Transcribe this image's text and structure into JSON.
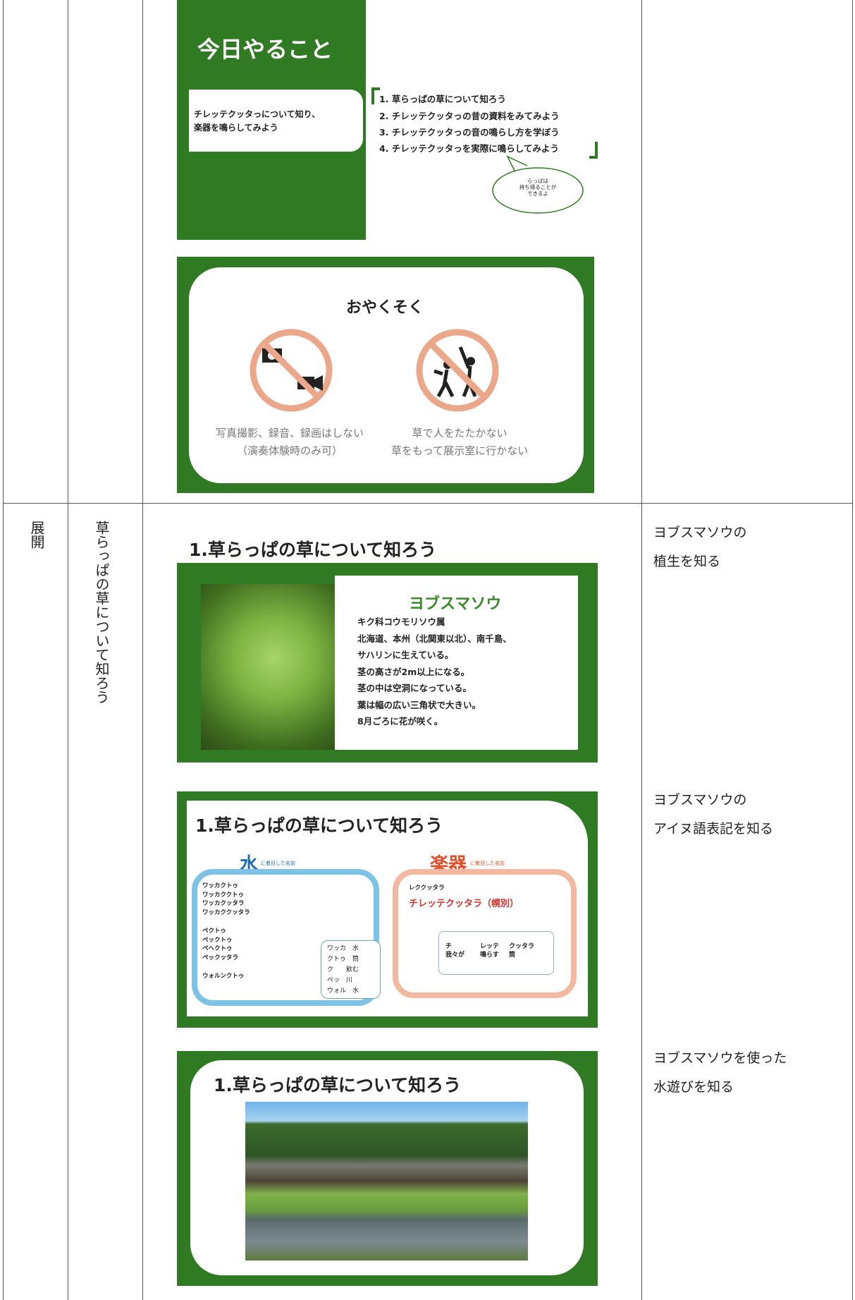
{
  "slides": [
    {
      "title": "今日やること",
      "goal": [
        "チレッテクッタっについて知り、",
        "楽器を鳴らしてみよう"
      ],
      "items": [
        "1. 草らっぱの草について知ろう",
        "2. チレッテクッタっの昔の資料をみてみよう",
        "3. チレッテクッタっの音の鳴らし方を学ぼう",
        "4. チレッテクッタっを実際に鳴らしてみよう"
      ],
      "bubble": [
        "らっぱは",
        "持ち帰ることが",
        "できるよ"
      ]
    },
    {
      "title": "おやくそく",
      "left": [
        "写真撮影、録音、録画はしない",
        "（演奏体験時のみ可）"
      ],
      "right": [
        "草で人をたたかない",
        "草をもって展示室に行かない"
      ]
    },
    {
      "heading": "1.草らっぱの草について知ろう",
      "name": "ヨブスマソウ",
      "lines": [
        "キク科コウモリソウ属",
        "北海道、本州（北関東以北）、南千島、",
        "サハリンに生えている。",
        "茎の高さが2m以上になる。",
        "茎の中は空洞になっている。",
        "葉は幅の広い三角状で大きい。",
        "8月ごろに花が咲く。"
      ]
    },
    {
      "heading": "1.草らっぱの草について知ろう",
      "water": "水",
      "water_note": "に着目した名前",
      "water_names": [
        "ワッカクトゥ",
        "ワッカククトゥ",
        "ワッカクッタラ",
        "ワッカククッタラ",
        "ペクトゥ",
        "ペックトゥ",
        "ペヘクトゥ",
        "ペックッタラ",
        "ウォルンクトゥ"
      ],
      "water_words": [
        "ワッカ　水",
        "クトゥ　筒",
        "ク　　飲む",
        "ペッ　川",
        "ウォル　水"
      ],
      "instrument": "楽器",
      "instrument_note": "に着目した名前",
      "instrument_names": [
        "レククッタラ",
        "チレッテクッタラ（幌別）"
      ],
      "instrument_words": [
        [
          "チ",
          "我々が"
        ],
        [
          "レッテ",
          "鳴らす"
        ],
        [
          "クッタラ",
          "筒"
        ]
      ]
    },
    {
      "heading": "1.草らっぱの草について知ろう"
    }
  ],
  "rows": [
    {
      "phase": "展開",
      "topic": "草らっぱの草について知ろう",
      "notes": [
        [
          "ヨブスマソウの",
          "植生を知る"
        ],
        [
          "ヨブスマソウの",
          "アイヌ語表記を知る"
        ],
        [
          "ヨブスマソウを使った",
          "水遊びを知る"
        ]
      ]
    }
  ]
}
